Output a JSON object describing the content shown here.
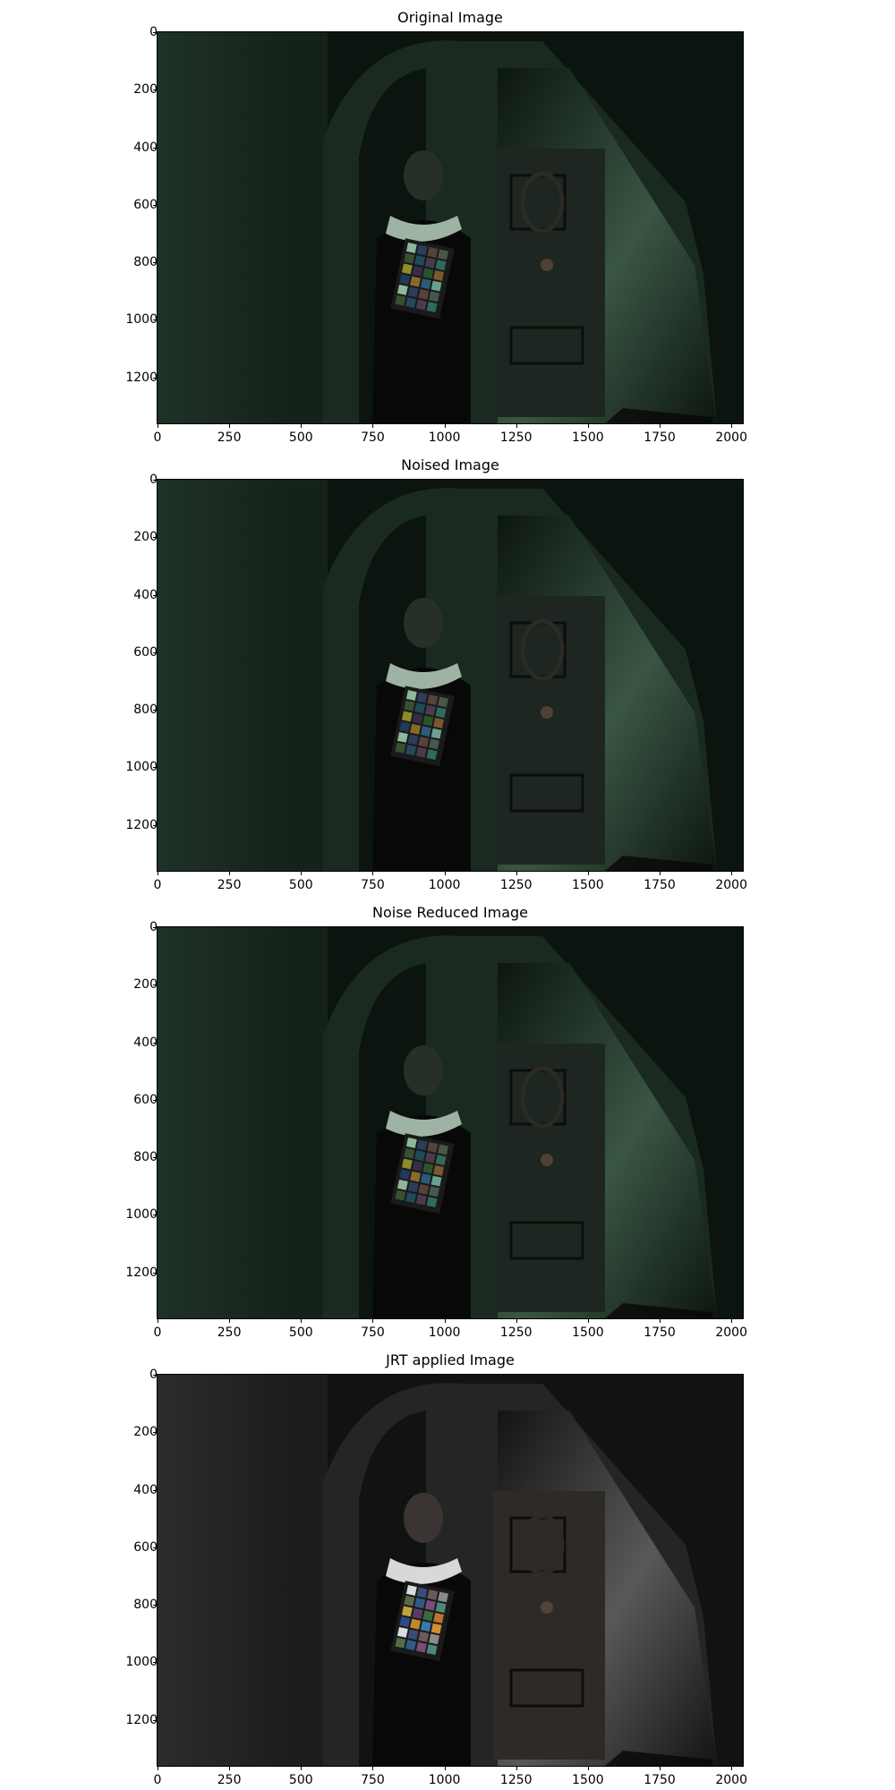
{
  "panels": [
    {
      "title": "Original Image",
      "tint": "green"
    },
    {
      "title": "Noised Image",
      "tint": "green"
    },
    {
      "title": "Noise Reduced Image",
      "tint": "green"
    },
    {
      "title": "JRT applied Image",
      "tint": "neutral"
    }
  ],
  "axes": {
    "x_ticks": [
      "0",
      "250",
      "500",
      "750",
      "1000",
      "1250",
      "1500",
      "1750",
      "2000"
    ],
    "y_ticks": [
      "0",
      "200",
      "400",
      "600",
      "800",
      "1000",
      "1200"
    ]
  },
  "colors": {
    "green_shadow": "#0b140f",
    "green_wall": "#3d5a47",
    "neutral_shadow": "#111212",
    "neutral_wall": "#5d5f5f"
  }
}
